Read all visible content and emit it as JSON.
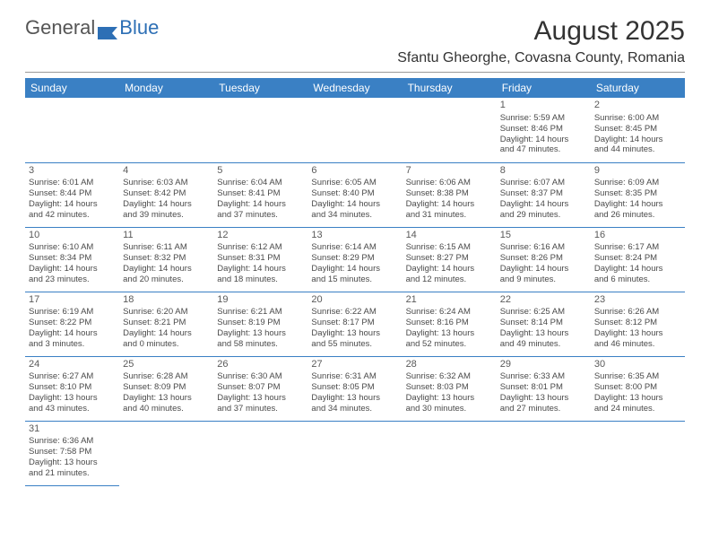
{
  "logo": {
    "part1": "General",
    "part2": "Blue"
  },
  "monthTitle": "August 2025",
  "location": "Sfantu Gheorghe, Covasna County, Romania",
  "colors": {
    "headerBg": "#3a80c4",
    "headerText": "#ffffff",
    "cellBorder": "#3a80c4",
    "bodyText": "#4a4a4a",
    "titleText": "#333333",
    "logoGray": "#555555",
    "logoBlue": "#2d6fb5",
    "background": "#ffffff"
  },
  "typography": {
    "monthTitleSize": 30,
    "locationSize": 16,
    "dayHeaderSize": 12,
    "cellFontSize": 9.5,
    "dayNumSize": 11,
    "fontFamily": "Arial"
  },
  "dayHeaders": [
    "Sunday",
    "Monday",
    "Tuesday",
    "Wednesday",
    "Thursday",
    "Friday",
    "Saturday"
  ],
  "weeks": [
    [
      null,
      null,
      null,
      null,
      null,
      {
        "n": "1",
        "sr": "Sunrise: 5:59 AM",
        "ss": "Sunset: 8:46 PM",
        "d1": "Daylight: 14 hours",
        "d2": "and 47 minutes."
      },
      {
        "n": "2",
        "sr": "Sunrise: 6:00 AM",
        "ss": "Sunset: 8:45 PM",
        "d1": "Daylight: 14 hours",
        "d2": "and 44 minutes."
      }
    ],
    [
      {
        "n": "3",
        "sr": "Sunrise: 6:01 AM",
        "ss": "Sunset: 8:44 PM",
        "d1": "Daylight: 14 hours",
        "d2": "and 42 minutes."
      },
      {
        "n": "4",
        "sr": "Sunrise: 6:03 AM",
        "ss": "Sunset: 8:42 PM",
        "d1": "Daylight: 14 hours",
        "d2": "and 39 minutes."
      },
      {
        "n": "5",
        "sr": "Sunrise: 6:04 AM",
        "ss": "Sunset: 8:41 PM",
        "d1": "Daylight: 14 hours",
        "d2": "and 37 minutes."
      },
      {
        "n": "6",
        "sr": "Sunrise: 6:05 AM",
        "ss": "Sunset: 8:40 PM",
        "d1": "Daylight: 14 hours",
        "d2": "and 34 minutes."
      },
      {
        "n": "7",
        "sr": "Sunrise: 6:06 AM",
        "ss": "Sunset: 8:38 PM",
        "d1": "Daylight: 14 hours",
        "d2": "and 31 minutes."
      },
      {
        "n": "8",
        "sr": "Sunrise: 6:07 AM",
        "ss": "Sunset: 8:37 PM",
        "d1": "Daylight: 14 hours",
        "d2": "and 29 minutes."
      },
      {
        "n": "9",
        "sr": "Sunrise: 6:09 AM",
        "ss": "Sunset: 8:35 PM",
        "d1": "Daylight: 14 hours",
        "d2": "and 26 minutes."
      }
    ],
    [
      {
        "n": "10",
        "sr": "Sunrise: 6:10 AM",
        "ss": "Sunset: 8:34 PM",
        "d1": "Daylight: 14 hours",
        "d2": "and 23 minutes."
      },
      {
        "n": "11",
        "sr": "Sunrise: 6:11 AM",
        "ss": "Sunset: 8:32 PM",
        "d1": "Daylight: 14 hours",
        "d2": "and 20 minutes."
      },
      {
        "n": "12",
        "sr": "Sunrise: 6:12 AM",
        "ss": "Sunset: 8:31 PM",
        "d1": "Daylight: 14 hours",
        "d2": "and 18 minutes."
      },
      {
        "n": "13",
        "sr": "Sunrise: 6:14 AM",
        "ss": "Sunset: 8:29 PM",
        "d1": "Daylight: 14 hours",
        "d2": "and 15 minutes."
      },
      {
        "n": "14",
        "sr": "Sunrise: 6:15 AM",
        "ss": "Sunset: 8:27 PM",
        "d1": "Daylight: 14 hours",
        "d2": "and 12 minutes."
      },
      {
        "n": "15",
        "sr": "Sunrise: 6:16 AM",
        "ss": "Sunset: 8:26 PM",
        "d1": "Daylight: 14 hours",
        "d2": "and 9 minutes."
      },
      {
        "n": "16",
        "sr": "Sunrise: 6:17 AM",
        "ss": "Sunset: 8:24 PM",
        "d1": "Daylight: 14 hours",
        "d2": "and 6 minutes."
      }
    ],
    [
      {
        "n": "17",
        "sr": "Sunrise: 6:19 AM",
        "ss": "Sunset: 8:22 PM",
        "d1": "Daylight: 14 hours",
        "d2": "and 3 minutes."
      },
      {
        "n": "18",
        "sr": "Sunrise: 6:20 AM",
        "ss": "Sunset: 8:21 PM",
        "d1": "Daylight: 14 hours",
        "d2": "and 0 minutes."
      },
      {
        "n": "19",
        "sr": "Sunrise: 6:21 AM",
        "ss": "Sunset: 8:19 PM",
        "d1": "Daylight: 13 hours",
        "d2": "and 58 minutes."
      },
      {
        "n": "20",
        "sr": "Sunrise: 6:22 AM",
        "ss": "Sunset: 8:17 PM",
        "d1": "Daylight: 13 hours",
        "d2": "and 55 minutes."
      },
      {
        "n": "21",
        "sr": "Sunrise: 6:24 AM",
        "ss": "Sunset: 8:16 PM",
        "d1": "Daylight: 13 hours",
        "d2": "and 52 minutes."
      },
      {
        "n": "22",
        "sr": "Sunrise: 6:25 AM",
        "ss": "Sunset: 8:14 PM",
        "d1": "Daylight: 13 hours",
        "d2": "and 49 minutes."
      },
      {
        "n": "23",
        "sr": "Sunrise: 6:26 AM",
        "ss": "Sunset: 8:12 PM",
        "d1": "Daylight: 13 hours",
        "d2": "and 46 minutes."
      }
    ],
    [
      {
        "n": "24",
        "sr": "Sunrise: 6:27 AM",
        "ss": "Sunset: 8:10 PM",
        "d1": "Daylight: 13 hours",
        "d2": "and 43 minutes."
      },
      {
        "n": "25",
        "sr": "Sunrise: 6:28 AM",
        "ss": "Sunset: 8:09 PM",
        "d1": "Daylight: 13 hours",
        "d2": "and 40 minutes."
      },
      {
        "n": "26",
        "sr": "Sunrise: 6:30 AM",
        "ss": "Sunset: 8:07 PM",
        "d1": "Daylight: 13 hours",
        "d2": "and 37 minutes."
      },
      {
        "n": "27",
        "sr": "Sunrise: 6:31 AM",
        "ss": "Sunset: 8:05 PM",
        "d1": "Daylight: 13 hours",
        "d2": "and 34 minutes."
      },
      {
        "n": "28",
        "sr": "Sunrise: 6:32 AM",
        "ss": "Sunset: 8:03 PM",
        "d1": "Daylight: 13 hours",
        "d2": "and 30 minutes."
      },
      {
        "n": "29",
        "sr": "Sunrise: 6:33 AM",
        "ss": "Sunset: 8:01 PM",
        "d1": "Daylight: 13 hours",
        "d2": "and 27 minutes."
      },
      {
        "n": "30",
        "sr": "Sunrise: 6:35 AM",
        "ss": "Sunset: 8:00 PM",
        "d1": "Daylight: 13 hours",
        "d2": "and 24 minutes."
      }
    ],
    [
      {
        "n": "31",
        "sr": "Sunrise: 6:36 AM",
        "ss": "Sunset: 7:58 PM",
        "d1": "Daylight: 13 hours",
        "d2": "and 21 minutes."
      },
      null,
      null,
      null,
      null,
      null,
      null
    ]
  ]
}
